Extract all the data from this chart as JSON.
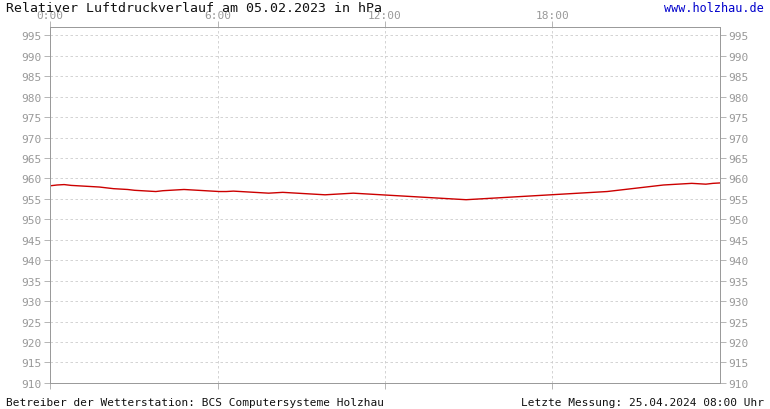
{
  "title": "Relativer Luftdruckverlauf am 05.02.2023 in hPa",
  "url_text": "www.holzhau.de",
  "footer_left": "Betreiber der Wetterstation: BCS Computersysteme Holzhau",
  "footer_right": "Letzte Messung: 25.04.2024 08:00 Uhr",
  "bg_color": "#ffffff",
  "plot_bg_color": "#ffffff",
  "grid_color": "#cccccc",
  "line_color": "#cc0000",
  "text_color": "#111111",
  "axis_color": "#999999",
  "ylim": [
    910,
    997
  ],
  "ytick_start": 910,
  "ytick_end": 995,
  "ytick_step": 5,
  "xlim_hours": [
    0,
    24
  ],
  "xticks_hours": [
    0,
    6,
    12,
    18
  ],
  "xtick_labels": [
    "0:00",
    "6:00",
    "12:00",
    "18:00"
  ],
  "pressure_data": [
    958.2,
    958.4,
    958.5,
    958.3,
    958.2,
    958.1,
    958.0,
    957.9,
    957.7,
    957.5,
    957.4,
    957.3,
    957.1,
    957.0,
    956.9,
    956.8,
    957.0,
    957.1,
    957.2,
    957.3,
    957.2,
    957.1,
    957.0,
    956.9,
    956.8,
    956.8,
    956.9,
    956.8,
    956.7,
    956.6,
    956.5,
    956.4,
    956.5,
    956.6,
    956.5,
    956.4,
    956.3,
    956.2,
    956.1,
    956.0,
    956.1,
    956.2,
    956.3,
    956.4,
    956.3,
    956.2,
    956.1,
    956.0,
    955.9,
    955.8,
    955.7,
    955.6,
    955.5,
    955.4,
    955.3,
    955.2,
    955.1,
    955.0,
    954.9,
    954.8,
    954.9,
    955.0,
    955.1,
    955.2,
    955.3,
    955.4,
    955.5,
    955.6,
    955.7,
    955.8,
    955.9,
    956.0,
    956.1,
    956.2,
    956.3,
    956.4,
    956.5,
    956.6,
    956.7,
    956.8,
    957.0,
    957.2,
    957.4,
    957.6,
    957.8,
    958.0,
    958.2,
    958.4,
    958.5,
    958.6,
    958.7,
    958.8,
    958.7,
    958.6,
    958.8,
    958.9
  ],
  "title_fontsize": 9.5,
  "tick_fontsize": 8,
  "footer_fontsize": 8,
  "url_fontsize": 8.5
}
